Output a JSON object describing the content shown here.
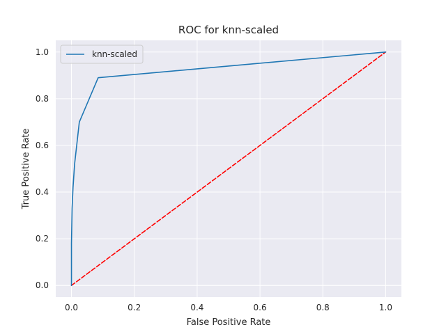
{
  "chart_data": {
    "type": "line",
    "title": "ROC for knn-scaled",
    "xlabel": "False Positive Rate",
    "ylabel": "True Positive Rate",
    "xlim": [
      -0.05,
      1.05
    ],
    "ylim": [
      -0.05,
      1.05
    ],
    "xticks": [
      0.0,
      0.2,
      0.4,
      0.6,
      0.8,
      1.0
    ],
    "xtick_labels": [
      "0.0",
      "0.2",
      "0.4",
      "0.6",
      "0.8",
      "1.0"
    ],
    "yticks": [
      0.0,
      0.2,
      0.4,
      0.6,
      0.8,
      1.0
    ],
    "ytick_labels": [
      "0.0",
      "0.2",
      "0.4",
      "0.6",
      "0.8",
      "1.0"
    ],
    "grid": true,
    "legend_position": "upper-left",
    "series": [
      {
        "name": "knn-scaled",
        "color": "#1f77b4",
        "style": "solid",
        "x": [
          0.0,
          0.0,
          0.002,
          0.005,
          0.01,
          0.025,
          0.085,
          1.0
        ],
        "y": [
          0.0,
          0.18,
          0.33,
          0.42,
          0.52,
          0.7,
          0.89,
          1.0
        ]
      },
      {
        "color": "#ff0000",
        "style": "dashed",
        "x": [
          0.0,
          1.0
        ],
        "y": [
          0.0,
          1.0
        ]
      }
    ]
  }
}
